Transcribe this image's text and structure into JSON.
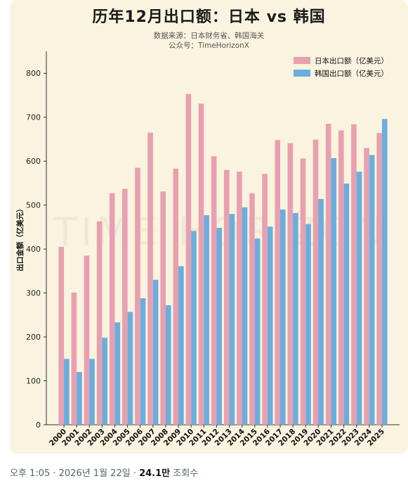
{
  "chart_data": {
    "type": "bar",
    "title": "历年12月出口额：日本 vs 韩国",
    "subtitle_lines": [
      "数据来源：日本财务省、韩国海关",
      "公众号：TimeHorizonX"
    ],
    "ylabel": "出口金额（亿美元）",
    "xlabel": "",
    "ylim": [
      0,
      850
    ],
    "yticks": [
      0,
      100,
      200,
      300,
      400,
      500,
      600,
      700,
      800
    ],
    "categories": [
      "2000",
      "2001",
      "2002",
      "2003",
      "2004",
      "2005",
      "2006",
      "2007",
      "2008",
      "2009",
      "2010",
      "2011",
      "2012",
      "2013",
      "2014",
      "2015",
      "2016",
      "2017",
      "2018",
      "2019",
      "2020",
      "2021",
      "2022",
      "2023",
      "2024",
      "2025"
    ],
    "series": [
      {
        "name": "日本出口额（亿美元）",
        "color": "#e8a0b0",
        "values": [
          405,
          301,
          385,
          463,
          527,
          537,
          585,
          665,
          531,
          583,
          753,
          731,
          611,
          580,
          576,
          527,
          571,
          648,
          641,
          606,
          649,
          685,
          670,
          684,
          630,
          664
        ]
      },
      {
        "name": "韩国出口额（亿美元）",
        "color": "#6aaede",
        "values": [
          150,
          120,
          150,
          198,
          233,
          257,
          288,
          330,
          272,
          361,
          441,
          477,
          448,
          480,
          495,
          424,
          451,
          490,
          482,
          457,
          514,
          607,
          549,
          576,
          614,
          696
        ]
      }
    ],
    "legend_position": "top-right",
    "watermark": "TIME HORIZON",
    "grid": false
  },
  "footer": {
    "time": "오후 1:05 · 2026년 1월 22일 · ",
    "views_value": "24.1만",
    "views_label": " 조회수"
  }
}
